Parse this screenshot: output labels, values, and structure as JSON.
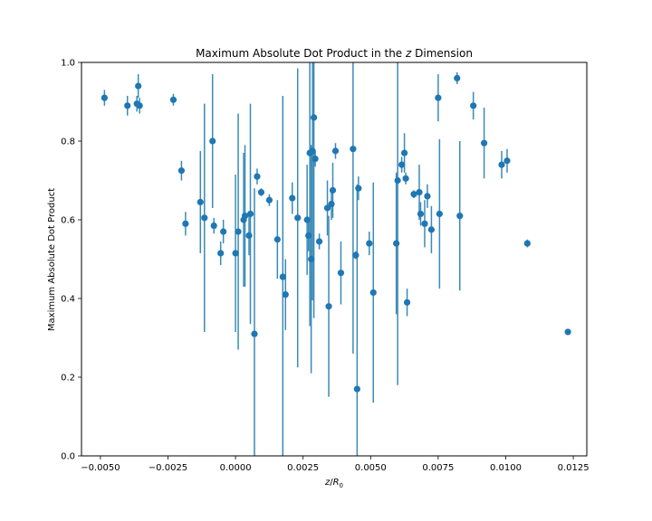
{
  "chart_data": {
    "type": "scatter",
    "title": "Maximum Absolute Dot Product in the z Dimension",
    "title_parts": {
      "prefix": "Maximum Absolute Dot Product in the ",
      "var": "z",
      "suffix": " Dimension"
    },
    "xlabel": "z/R₀",
    "xlabel_parts": {
      "a": "z",
      "sep": "/",
      "b": "R",
      "sub": "0"
    },
    "ylabel": "Maximum Absolute Dot Product",
    "xlim": [
      -0.0057,
      0.013
    ],
    "ylim": [
      0.0,
      1.0
    ],
    "x_ticks": [
      -0.005,
      -0.0025,
      0.0,
      0.0025,
      0.005,
      0.0075,
      0.01,
      0.0125
    ],
    "x_tick_labels": [
      "−0.0050",
      "−0.0025",
      "0.0000",
      "0.0025",
      "0.0050",
      "0.0075",
      "0.0100",
      "0.0125"
    ],
    "y_ticks": [
      0.0,
      0.2,
      0.4,
      0.6,
      0.8,
      1.0
    ],
    "y_tick_labels": [
      "0.0",
      "0.2",
      "0.4",
      "0.6",
      "0.8",
      "1.0"
    ],
    "grid": false,
    "colors": {
      "point": "#1f77b4",
      "errorbar": "#3b8ab7"
    },
    "series": [
      {
        "x": [
          -0.00485,
          -0.004,
          -0.00365,
          -0.0036,
          -0.00355,
          -0.0023,
          -0.002,
          -0.00185,
          -0.0013,
          -0.00115,
          -0.00085,
          -0.0008,
          -0.00055,
          -0.00045,
          0.0,
          0.0001,
          0.0003,
          0.00035,
          0.0005,
          0.00055,
          0.0007,
          0.0008,
          0.00095,
          0.00125,
          0.00155,
          0.00175,
          0.00185,
          0.0021,
          0.0023,
          0.00265,
          0.0027,
          0.00275,
          0.0028,
          0.00285,
          0.0029,
          0.00295,
          0.0031,
          0.0034,
          0.00345,
          0.00355,
          0.0036,
          0.0037,
          0.0039,
          0.00435,
          0.00445,
          0.0045,
          0.00455,
          0.00495,
          0.0051,
          0.00595,
          0.006,
          0.00615,
          0.00625,
          0.0063,
          0.00635,
          0.0066,
          0.0068,
          0.00685,
          0.007,
          0.0071,
          0.00725,
          0.0075,
          0.00755,
          0.0082,
          0.0083,
          0.0088,
          0.0092,
          0.00985,
          0.01005,
          0.0108,
          0.0123
        ],
        "y": [
          0.91,
          0.89,
          0.895,
          0.94,
          0.89,
          0.905,
          0.725,
          0.59,
          0.645,
          0.605,
          0.8,
          0.585,
          0.515,
          0.57,
          0.515,
          0.57,
          0.6,
          0.61,
          0.56,
          0.615,
          0.31,
          0.71,
          0.67,
          0.65,
          0.55,
          0.455,
          0.41,
          0.655,
          0.605,
          0.6,
          0.56,
          0.77,
          0.5,
          0.775,
          0.86,
          0.755,
          0.545,
          0.63,
          0.38,
          0.64,
          0.675,
          0.775,
          0.465,
          0.78,
          0.51,
          0.17,
          0.68,
          0.54,
          0.415,
          0.54,
          0.7,
          0.74,
          0.77,
          0.705,
          0.39,
          0.665,
          0.67,
          0.615,
          0.59,
          0.66,
          0.575,
          0.91,
          0.615,
          0.96,
          0.61,
          0.89,
          0.795,
          0.74,
          0.75,
          0.54,
          0.315
        ],
        "yerr": [
          0.02,
          0.025,
          0.02,
          0.03,
          0.02,
          0.015,
          0.025,
          0.03,
          0.13,
          0.29,
          0.17,
          0.02,
          0.03,
          0.03,
          0.2,
          0.3,
          0.17,
          0.18,
          0.05,
          0.28,
          0.37,
          0.02,
          0.01,
          0.015,
          0.1,
          0.46,
          0.09,
          0.04,
          0.38,
          0.14,
          0.04,
          0.44,
          0.29,
          0.38,
          0.51,
          0.02,
          0.02,
          0.07,
          0.23,
          0.04,
          0.07,
          0.02,
          0.08,
          0.52,
          0.01,
          0.52,
          0.03,
          0.03,
          0.28,
          0.18,
          0.52,
          0.02,
          0.05,
          0.015,
          0.035,
          0.01,
          0.07,
          0.03,
          0.06,
          0.03,
          0.06,
          0.06,
          0.19,
          0.015,
          0.19,
          0.035,
          0.09,
          0.035,
          0.03,
          0.01,
          0.005
        ]
      }
    ]
  }
}
